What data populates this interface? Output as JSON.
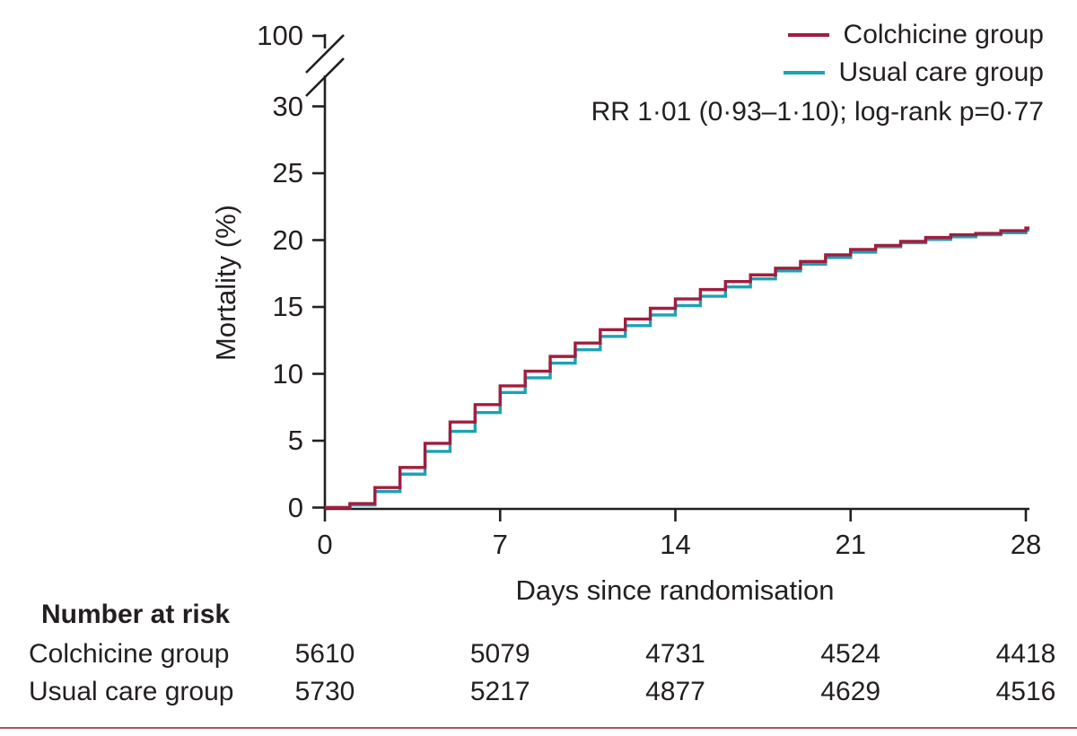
{
  "figure": {
    "background": "#ffffff",
    "text_color": "#231f20",
    "axis_color": "#231f20",
    "bottom_rule_color": "#b05064"
  },
  "legend": {
    "items": [
      {
        "label": "Colchicine group",
        "color": "#a01e3f"
      },
      {
        "label": "Usual care group",
        "color": "#1ba3b5"
      }
    ],
    "annotation": "RR 1·01 (0·93–1·10); log-rank p=0·77"
  },
  "chart_data": {
    "type": "line",
    "subtype": "kaplan-meier-step",
    "title": "",
    "xlabel": "Days since randomisation",
    "ylabel": "Mortality (%)",
    "xlim": [
      0,
      28
    ],
    "ylim": [
      0,
      30
    ],
    "axis_break": {
      "present": true,
      "between": [
        30,
        100
      ],
      "top_tick": "100"
    },
    "xticks": [
      "0",
      "7",
      "14",
      "21",
      "28"
    ],
    "yticks": [
      "0",
      "5",
      "10",
      "15",
      "20",
      "25",
      "30"
    ],
    "grid": false,
    "legend_position": "top-right",
    "x": [
      0,
      1,
      2,
      3,
      4,
      5,
      6,
      7,
      8,
      9,
      10,
      11,
      12,
      13,
      14,
      15,
      16,
      17,
      18,
      19,
      20,
      21,
      22,
      23,
      24,
      25,
      26,
      27,
      28
    ],
    "series": [
      {
        "name": "Colchicine group",
        "color": "#a01e3f",
        "values": [
          0,
          0.3,
          1.5,
          3.0,
          4.8,
          6.4,
          7.7,
          9.1,
          10.2,
          11.3,
          12.3,
          13.3,
          14.1,
          14.9,
          15.6,
          16.3,
          16.9,
          17.4,
          17.9,
          18.4,
          18.9,
          19.3,
          19.6,
          19.9,
          20.2,
          20.4,
          20.5,
          20.7,
          20.9
        ]
      },
      {
        "name": "Usual care group",
        "color": "#1ba3b5",
        "values": [
          0,
          0.2,
          1.2,
          2.5,
          4.2,
          5.7,
          7.1,
          8.6,
          9.7,
          10.8,
          11.8,
          12.8,
          13.6,
          14.4,
          15.1,
          15.8,
          16.5,
          17.1,
          17.7,
          18.2,
          18.7,
          19.1,
          19.5,
          19.8,
          20.05,
          20.25,
          20.4,
          20.55,
          20.75
        ]
      }
    ],
    "annotation": "RR 1·01 (0·93–1·10); log-rank p=0·77"
  },
  "risk_table": {
    "title": "Number at risk",
    "time_points": [
      "0",
      "7",
      "14",
      "21",
      "28"
    ],
    "rows": [
      {
        "label": "Colchicine group",
        "values": [
          "5610",
          "5079",
          "4731",
          "4524",
          "4418"
        ]
      },
      {
        "label": "Usual care group",
        "values": [
          "5730",
          "5217",
          "4877",
          "4629",
          "4516"
        ]
      }
    ]
  }
}
